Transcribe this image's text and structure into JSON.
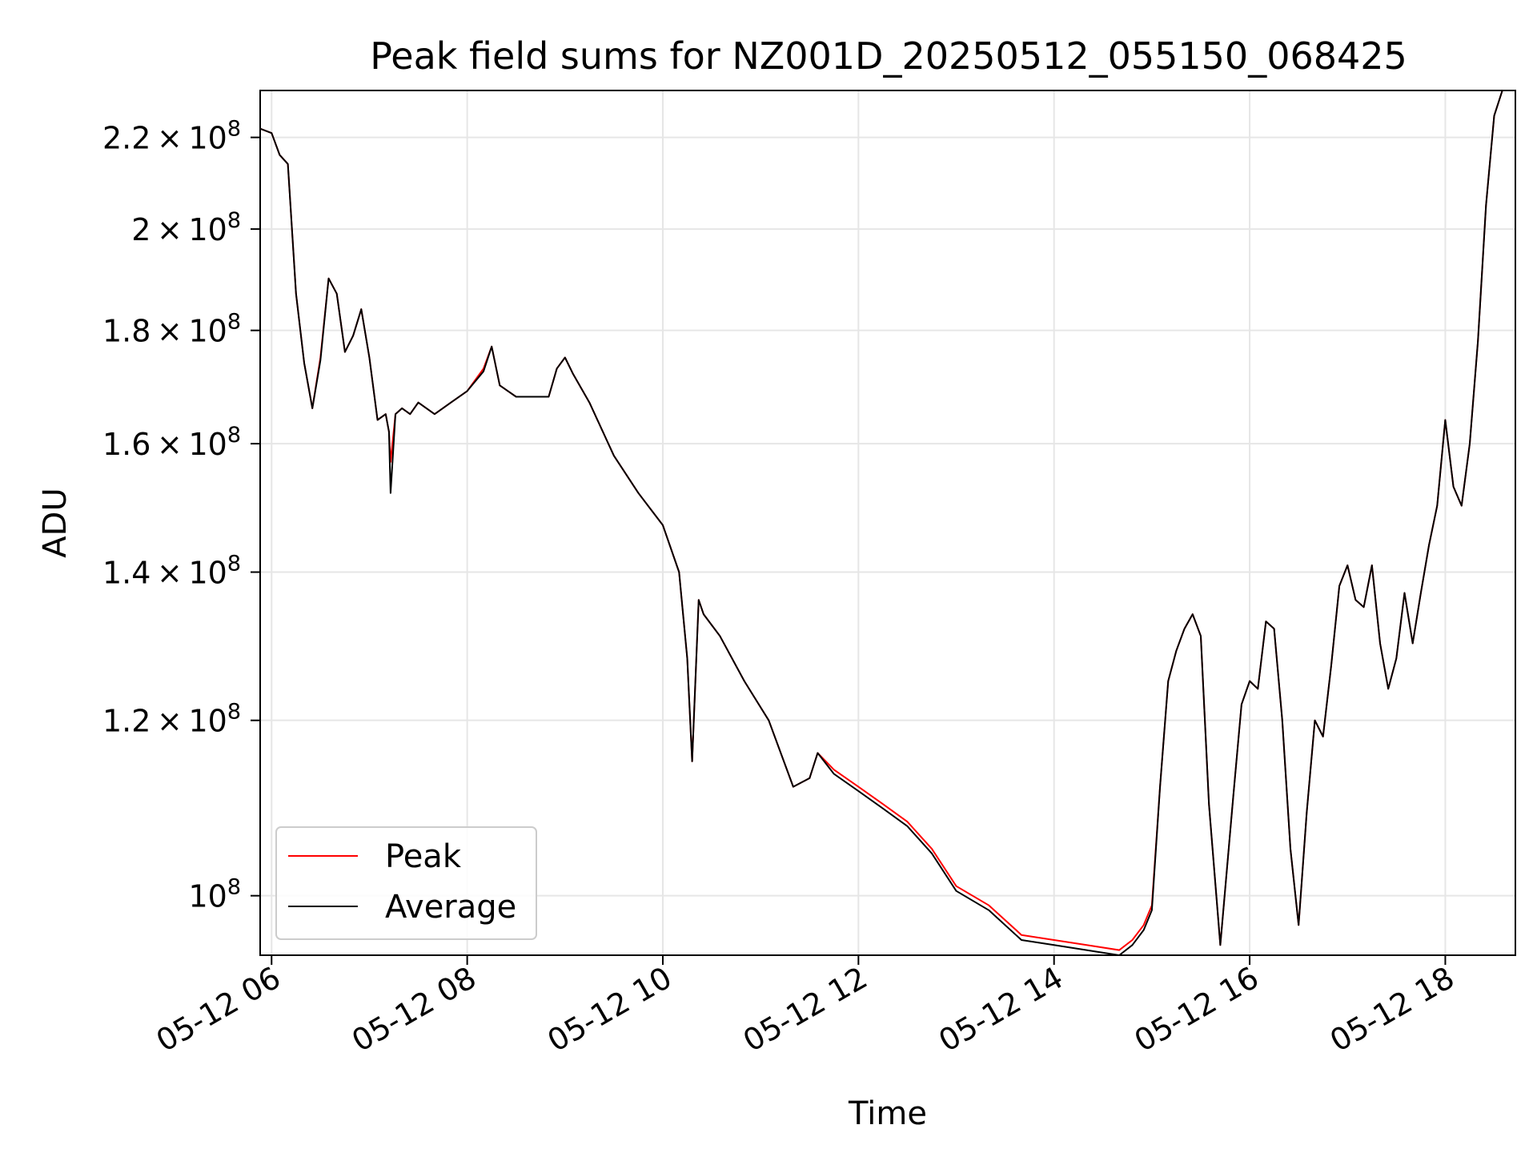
{
  "chart_data": {
    "type": "line",
    "title": "Peak field sums for NZ001D_20250512_055150_068425",
    "xlabel": "Time",
    "ylabel": "ADU",
    "y_scale": "log",
    "xlim": [
      "2025-05-12 05:53",
      "2025-05-12 18:43"
    ],
    "ylim": [
      94000000,
      231000000
    ],
    "x_ticks": [
      {
        "value": "2025-05-12 06:00",
        "label": "05-12 06"
      },
      {
        "value": "2025-05-12 08:00",
        "label": "05-12 08"
      },
      {
        "value": "2025-05-12 10:00",
        "label": "05-12 10"
      },
      {
        "value": "2025-05-12 12:00",
        "label": "05-12 12"
      },
      {
        "value": "2025-05-12 14:00",
        "label": "05-12 14"
      },
      {
        "value": "2025-05-12 16:00",
        "label": "05-12 16"
      },
      {
        "value": "2025-05-12 18:00",
        "label": "05-12 18"
      }
    ],
    "y_ticks": [
      {
        "value": 100000000,
        "mantissa": "",
        "exp": "8"
      },
      {
        "value": 120000000,
        "mantissa": "1.2",
        "exp": "8"
      },
      {
        "value": 140000000,
        "mantissa": "1.4",
        "exp": "8"
      },
      {
        "value": 160000000,
        "mantissa": "1.6",
        "exp": "8"
      },
      {
        "value": 180000000,
        "mantissa": "1.8",
        "exp": "8"
      },
      {
        "value": 200000000,
        "mantissa": "2",
        "exp": "8"
      },
      {
        "value": 220000000,
        "mantissa": "2.2",
        "exp": "8"
      }
    ],
    "grid": true,
    "legend_position": "lower-left",
    "series": [
      {
        "name": "Peak",
        "color": "#ff0000",
        "x": [
          "2025-05-12 05:53",
          "2025-05-12 06:00",
          "2025-05-12 06:05",
          "2025-05-12 06:10",
          "2025-05-12 06:15",
          "2025-05-12 06:20",
          "2025-05-12 06:25",
          "2025-05-12 06:30",
          "2025-05-12 06:35",
          "2025-05-12 06:40",
          "2025-05-12 06:45",
          "2025-05-12 06:50",
          "2025-05-12 06:55",
          "2025-05-12 07:00",
          "2025-05-12 07:05",
          "2025-05-12 07:10",
          "2025-05-12 07:12",
          "2025-05-12 07:13",
          "2025-05-12 07:16",
          "2025-05-12 07:20",
          "2025-05-12 07:25",
          "2025-05-12 07:30",
          "2025-05-12 07:40",
          "2025-05-12 07:50",
          "2025-05-12 08:00",
          "2025-05-12 08:10",
          "2025-05-12 08:15",
          "2025-05-12 08:20",
          "2025-05-12 08:25",
          "2025-05-12 08:30",
          "2025-05-12 08:40",
          "2025-05-12 08:50",
          "2025-05-12 08:55",
          "2025-05-12 09:00",
          "2025-05-12 09:05",
          "2025-05-12 09:15",
          "2025-05-12 09:30",
          "2025-05-12 09:45",
          "2025-05-12 10:00",
          "2025-05-12 10:10",
          "2025-05-12 10:15",
          "2025-05-12 10:18",
          "2025-05-12 10:22",
          "2025-05-12 10:25",
          "2025-05-12 10:35",
          "2025-05-12 10:50",
          "2025-05-12 11:05",
          "2025-05-12 11:20",
          "2025-05-12 11:30",
          "2025-05-12 11:35",
          "2025-05-12 11:45",
          "2025-05-12 12:00",
          "2025-05-12 12:15",
          "2025-05-12 12:30",
          "2025-05-12 12:45",
          "2025-05-12 13:00",
          "2025-05-12 13:20",
          "2025-05-12 13:40",
          "2025-05-12 14:00",
          "2025-05-12 14:20",
          "2025-05-12 14:40",
          "2025-05-12 14:48",
          "2025-05-12 14:55",
          "2025-05-12 15:00",
          "2025-05-12 15:05",
          "2025-05-12 15:10",
          "2025-05-12 15:15",
          "2025-05-12 15:20",
          "2025-05-12 15:25",
          "2025-05-12 15:30",
          "2025-05-12 15:35",
          "2025-05-12 15:42",
          "2025-05-12 15:50",
          "2025-05-12 15:55",
          "2025-05-12 16:00",
          "2025-05-12 16:05",
          "2025-05-12 16:10",
          "2025-05-12 16:15",
          "2025-05-12 16:20",
          "2025-05-12 16:25",
          "2025-05-12 16:30",
          "2025-05-12 16:35",
          "2025-05-12 16:40",
          "2025-05-12 16:45",
          "2025-05-12 16:50",
          "2025-05-12 16:55",
          "2025-05-12 17:00",
          "2025-05-12 17:05",
          "2025-05-12 17:10",
          "2025-05-12 17:15",
          "2025-05-12 17:20",
          "2025-05-12 17:25",
          "2025-05-12 17:30",
          "2025-05-12 17:35",
          "2025-05-12 17:40",
          "2025-05-12 17:45",
          "2025-05-12 17:50",
          "2025-05-12 17:55",
          "2025-05-12 18:00",
          "2025-05-12 18:05",
          "2025-05-12 18:10",
          "2025-05-12 18:15",
          "2025-05-12 18:20",
          "2025-05-12 18:25",
          "2025-05-12 18:30",
          "2025-05-12 18:35",
          "2025-05-12 18:43"
        ],
        "y": [
          222000000,
          221000000,
          216000000,
          214000000,
          187000000,
          174000000,
          166000000,
          175000000,
          190000000,
          187000000,
          176000000,
          179000000,
          184000000,
          175000000,
          164000000,
          165000000,
          162000000,
          157000000,
          165000000,
          166000000,
          165000000,
          167000000,
          165000000,
          167000000,
          169000000,
          173000000,
          177000000,
          170000000,
          169000000,
          168000000,
          168000000,
          168000000,
          173000000,
          175000000,
          172000000,
          167000000,
          158000000,
          152000000,
          147000000,
          140000000,
          128000000,
          115000000,
          136000000,
          134000000,
          131000000,
          125000000,
          120000000,
          112000000,
          113000000,
          116000000,
          114000000,
          112000000,
          110000000,
          108000000,
          105000000,
          101000000,
          99000000,
          96000000,
          95500000,
          95000000,
          94500000,
          95500000,
          97000000,
          99000000,
          112000000,
          125000000,
          129000000,
          132000000,
          134000000,
          131000000,
          110000000,
          95000000,
          111000000,
          122000000,
          125000000,
          124000000,
          133000000,
          132000000,
          120000000,
          105000000,
          97000000,
          109000000,
          120000000,
          118000000,
          127000000,
          138000000,
          141000000,
          136000000,
          135000000,
          141000000,
          130000000,
          124000000,
          128000000,
          137000000,
          130000000,
          137000000,
          144000000,
          150000000,
          164000000,
          153000000,
          150000000,
          160000000,
          178000000,
          205000000,
          225000000,
          231000000,
          231000000
        ]
      },
      {
        "name": "Average",
        "color": "#000000",
        "x": [
          "2025-05-12 05:53",
          "2025-05-12 06:00",
          "2025-05-12 06:05",
          "2025-05-12 06:10",
          "2025-05-12 06:15",
          "2025-05-12 06:20",
          "2025-05-12 06:25",
          "2025-05-12 06:30",
          "2025-05-12 06:35",
          "2025-05-12 06:40",
          "2025-05-12 06:45",
          "2025-05-12 06:50",
          "2025-05-12 06:55",
          "2025-05-12 07:00",
          "2025-05-12 07:05",
          "2025-05-12 07:10",
          "2025-05-12 07:12",
          "2025-05-12 07:13",
          "2025-05-12 07:16",
          "2025-05-12 07:20",
          "2025-05-12 07:25",
          "2025-05-12 07:30",
          "2025-05-12 07:40",
          "2025-05-12 07:50",
          "2025-05-12 08:00",
          "2025-05-12 08:10",
          "2025-05-12 08:15",
          "2025-05-12 08:20",
          "2025-05-12 08:25",
          "2025-05-12 08:30",
          "2025-05-12 08:40",
          "2025-05-12 08:50",
          "2025-05-12 08:55",
          "2025-05-12 09:00",
          "2025-05-12 09:05",
          "2025-05-12 09:15",
          "2025-05-12 09:30",
          "2025-05-12 09:45",
          "2025-05-12 10:00",
          "2025-05-12 10:10",
          "2025-05-12 10:15",
          "2025-05-12 10:18",
          "2025-05-12 10:22",
          "2025-05-12 10:25",
          "2025-05-12 10:35",
          "2025-05-12 10:50",
          "2025-05-12 11:05",
          "2025-05-12 11:20",
          "2025-05-12 11:30",
          "2025-05-12 11:35",
          "2025-05-12 11:45",
          "2025-05-12 12:00",
          "2025-05-12 12:15",
          "2025-05-12 12:30",
          "2025-05-12 12:45",
          "2025-05-12 13:00",
          "2025-05-12 13:20",
          "2025-05-12 13:40",
          "2025-05-12 14:00",
          "2025-05-12 14:20",
          "2025-05-12 14:40",
          "2025-05-12 14:48",
          "2025-05-12 14:55",
          "2025-05-12 15:00",
          "2025-05-12 15:05",
          "2025-05-12 15:10",
          "2025-05-12 15:15",
          "2025-05-12 15:20",
          "2025-05-12 15:25",
          "2025-05-12 15:30",
          "2025-05-12 15:35",
          "2025-05-12 15:42",
          "2025-05-12 15:50",
          "2025-05-12 15:55",
          "2025-05-12 16:00",
          "2025-05-12 16:05",
          "2025-05-12 16:10",
          "2025-05-12 16:15",
          "2025-05-12 16:20",
          "2025-05-12 16:25",
          "2025-05-12 16:30",
          "2025-05-12 16:35",
          "2025-05-12 16:40",
          "2025-05-12 16:45",
          "2025-05-12 16:50",
          "2025-05-12 16:55",
          "2025-05-12 17:00",
          "2025-05-12 17:05",
          "2025-05-12 17:10",
          "2025-05-12 17:15",
          "2025-05-12 17:20",
          "2025-05-12 17:25",
          "2025-05-12 17:30",
          "2025-05-12 17:35",
          "2025-05-12 17:40",
          "2025-05-12 17:45",
          "2025-05-12 17:50",
          "2025-05-12 17:55",
          "2025-05-12 18:00",
          "2025-05-12 18:05",
          "2025-05-12 18:10",
          "2025-05-12 18:15",
          "2025-05-12 18:20",
          "2025-05-12 18:25",
          "2025-05-12 18:30",
          "2025-05-12 18:35",
          "2025-05-12 18:43"
        ],
        "y": [
          222000000,
          221000000,
          216000000,
          214000000,
          187000000,
          174000000,
          166000000,
          174500000,
          190000000,
          187000000,
          176000000,
          179000000,
          184000000,
          175000000,
          164000000,
          165000000,
          162000000,
          152000000,
          165000000,
          166000000,
          165000000,
          167000000,
          165000000,
          167000000,
          169000000,
          172500000,
          177000000,
          170000000,
          169000000,
          168000000,
          168000000,
          168000000,
          173000000,
          175000000,
          172000000,
          167000000,
          158000000,
          152000000,
          147000000,
          140000000,
          128000000,
          115000000,
          136000000,
          134000000,
          131000000,
          125000000,
          120000000,
          112000000,
          113000000,
          116000000,
          113500000,
          111500000,
          109500000,
          107500000,
          104500000,
          100500000,
          98500000,
          95500000,
          95000000,
          94500000,
          94000000,
          95000000,
          96500000,
          98500000,
          112000000,
          125000000,
          129000000,
          132000000,
          134000000,
          131000000,
          110000000,
          95000000,
          111000000,
          122000000,
          125000000,
          124000000,
          133000000,
          132000000,
          120000000,
          105000000,
          97000000,
          109000000,
          120000000,
          118000000,
          127000000,
          138000000,
          141000000,
          136000000,
          135000000,
          141000000,
          130000000,
          124000000,
          128000000,
          137000000,
          130000000,
          137000000,
          144000000,
          150000000,
          164000000,
          153000000,
          150000000,
          160000000,
          178000000,
          205000000,
          225000000,
          231000000,
          231000000
        ]
      }
    ]
  }
}
